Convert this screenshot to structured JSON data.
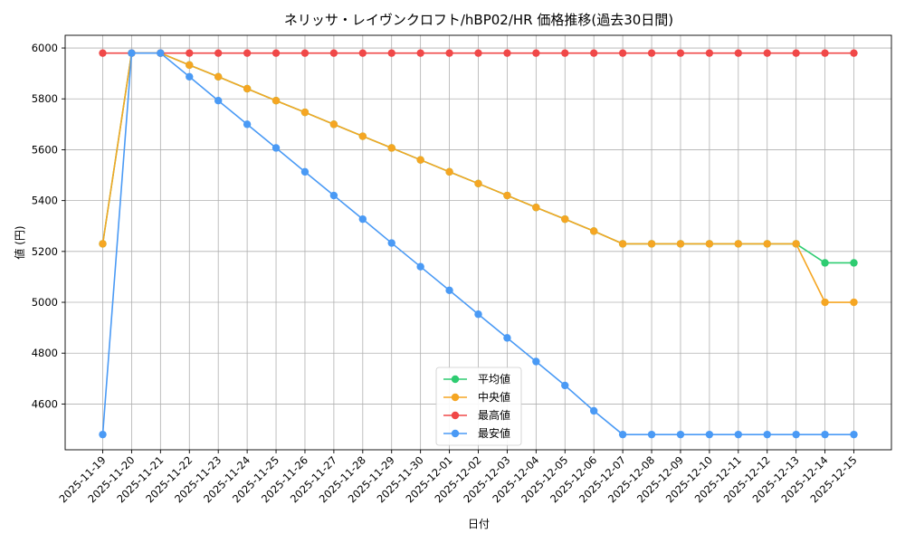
{
  "chart_data": {
    "type": "line",
    "title": "ネリッサ・レイヴンクロフト/hBP02/HR 価格推移(過去30日間)",
    "xlabel": "日付",
    "ylabel": "値 (円)",
    "ylim": [
      4420,
      6050
    ],
    "yticks": [
      4600,
      4800,
      5000,
      5200,
      5400,
      5600,
      5800,
      6000
    ],
    "grid": true,
    "legend_position": "bottom-center",
    "categories": [
      "2025-11-19",
      "2025-11-20",
      "2025-11-21",
      "2025-11-22",
      "2025-11-23",
      "2025-11-24",
      "2025-11-25",
      "2025-11-26",
      "2025-11-27",
      "2025-11-28",
      "2025-11-29",
      "2025-11-30",
      "2025-12-01",
      "2025-12-02",
      "2025-12-03",
      "2025-12-04",
      "2025-12-05",
      "2025-12-06",
      "2025-12-07",
      "2025-12-08",
      "2025-12-09",
      "2025-12-10",
      "2025-12-11",
      "2025-12-12",
      "2025-12-13",
      "2025-12-14",
      "2025-12-15"
    ],
    "series": [
      {
        "name": "平均値",
        "color": "#2ecc71",
        "values": [
          5230,
          5980,
          5980,
          5933,
          5887,
          5840,
          5793,
          5747,
          5700,
          5653,
          5607,
          5560,
          5513,
          5467,
          5420,
          5373,
          5327,
          5280,
          5230,
          5230,
          5230,
          5230,
          5230,
          5230,
          5230,
          5155,
          5155
        ]
      },
      {
        "name": "中央値",
        "color": "#f5a623",
        "values": [
          5230,
          5980,
          5980,
          5933,
          5887,
          5840,
          5793,
          5747,
          5700,
          5653,
          5607,
          5560,
          5513,
          5467,
          5420,
          5373,
          5327,
          5280,
          5230,
          5230,
          5230,
          5230,
          5230,
          5230,
          5230,
          5000,
          5000
        ]
      },
      {
        "name": "最高値",
        "color": "#f04848",
        "values": [
          5980,
          5980,
          5980,
          5980,
          5980,
          5980,
          5980,
          5980,
          5980,
          5980,
          5980,
          5980,
          5980,
          5980,
          5980,
          5980,
          5980,
          5980,
          5980,
          5980,
          5980,
          5980,
          5980,
          5980,
          5980,
          5980,
          5980
        ]
      },
      {
        "name": "最安値",
        "color": "#4a9af5",
        "values": [
          4480,
          5980,
          5980,
          5887,
          5793,
          5700,
          5607,
          5513,
          5420,
          5327,
          5233,
          5140,
          5047,
          4953,
          4860,
          4767,
          4673,
          4573,
          4480,
          4480,
          4480,
          4480,
          4480,
          4480,
          4480,
          4480,
          4480
        ]
      }
    ]
  }
}
